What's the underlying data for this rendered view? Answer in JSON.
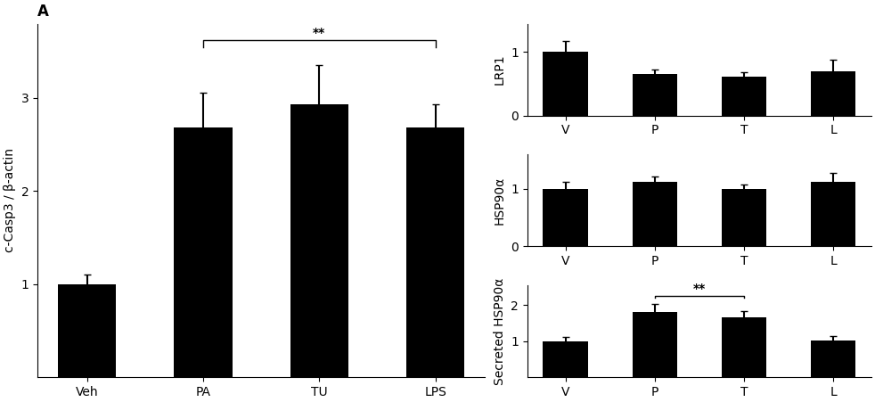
{
  "chart_data": [
    {
      "type": "bar",
      "title": "A",
      "categories": [
        "Veh",
        "PA",
        "TU",
        "LPS"
      ],
      "values": [
        1.0,
        2.68,
        2.93,
        2.68
      ],
      "errors": [
        0.1,
        0.38,
        0.42,
        0.25
      ],
      "ylabel": "c-Casp3 / β-actin",
      "ylim": [
        0,
        3.8
      ],
      "yticks": [
        1,
        2,
        3
      ],
      "color": "#000000",
      "annotations": [
        {
          "text": "**",
          "from": "PA",
          "to": "LPS",
          "y": 3.62
        }
      ]
    },
    {
      "type": "bar",
      "categories": [
        "V",
        "P",
        "T",
        "L"
      ],
      "values": [
        1.0,
        0.65,
        0.62,
        0.7
      ],
      "errors": [
        0.18,
        0.08,
        0.06,
        0.18
      ],
      "ylabel": "LRP1",
      "ylim": [
        0,
        1.45
      ],
      "yticks": [
        0,
        1
      ],
      "color": "#000000"
    },
    {
      "type": "bar",
      "categories": [
        "V",
        "P",
        "T",
        "L"
      ],
      "values": [
        1.0,
        1.12,
        1.0,
        1.13
      ],
      "errors": [
        0.12,
        0.1,
        0.08,
        0.15
      ],
      "ylabel": "HSP90α",
      "ylim": [
        0,
        1.6
      ],
      "yticks": [
        0,
        1
      ],
      "color": "#000000"
    },
    {
      "type": "bar",
      "categories": [
        "V",
        "P",
        "T",
        "L"
      ],
      "values": [
        1.0,
        1.82,
        1.65,
        1.02
      ],
      "errors": [
        0.12,
        0.22,
        0.18,
        0.12
      ],
      "ylabel": "Secreted HSP90α",
      "ylim": [
        0,
        2.55
      ],
      "yticks": [
        1,
        2
      ],
      "color": "#000000",
      "annotations": [
        {
          "text": "**",
          "from": "P",
          "to": "T",
          "y": 2.25
        }
      ]
    }
  ]
}
